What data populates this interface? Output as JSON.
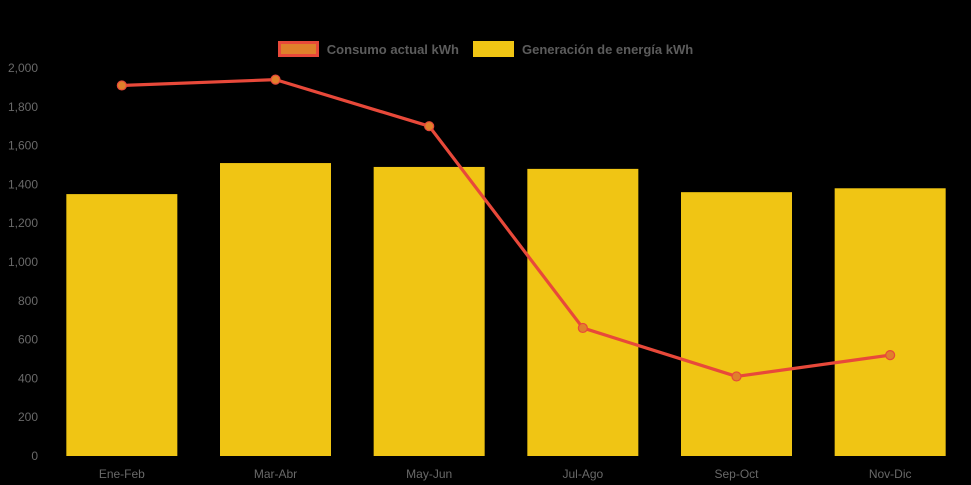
{
  "colors": {
    "background": "#000000",
    "bar": "#F0C514",
    "line": "#E8493A",
    "marker_fill": "#E0802B",
    "axis_text": "#696969",
    "legend_text": "#5C5C5C"
  },
  "legend": {
    "position": "top",
    "items": [
      {
        "label": "Consumo actual kWh",
        "swatch_color": "#E0802B",
        "swatch_border": "#E8493A"
      },
      {
        "label": "Generación de energía kWh",
        "swatch_color": "#F0C514",
        "swatch_border": "none"
      }
    ]
  },
  "chart_data": {
    "type": "bar",
    "subtype": "combo-bar-line",
    "title": "",
    "xlabel": "",
    "ylabel": "",
    "categories": [
      "Ene-Feb",
      "Mar-Abr",
      "May-Jun",
      "Jul-Ago",
      "Sep-Oct",
      "Nov-Dic"
    ],
    "series": [
      {
        "name": "Consumo actual kWh",
        "type": "line",
        "color": "#E8493A",
        "values": [
          1910,
          1940,
          1700,
          660,
          410,
          520
        ]
      },
      {
        "name": "Generación de energía kWh",
        "type": "bar",
        "color": "#F0C514",
        "values": [
          1350,
          1510,
          1490,
          1480,
          1360,
          1380
        ]
      }
    ],
    "ylim": [
      0,
      2000
    ],
    "ytick_step": 200,
    "ytick_labels": [
      "0",
      "200",
      "400",
      "600",
      "800",
      "1,000",
      "1,200",
      "1,400",
      "1,600",
      "1,800",
      "2,000"
    ],
    "grid": false,
    "legend_position": "top"
  }
}
